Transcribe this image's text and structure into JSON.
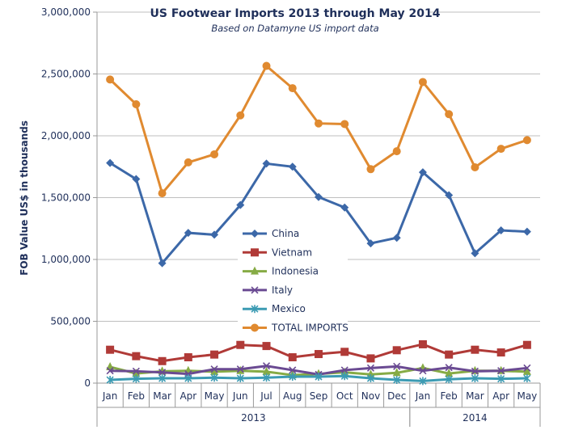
{
  "chart_data": {
    "type": "line",
    "title": "US Footwear Imports 2013 through May 2014",
    "subtitle": "Based on Datamyne US import data",
    "ylabel": "FOB Value US$ in thousands",
    "xlabel": "",
    "ylim": [
      0,
      3000000
    ],
    "yticks": [
      "0",
      "500,000",
      "1,000,000",
      "1,500,000",
      "2,000,000",
      "2,500,000",
      "3,000,000"
    ],
    "categories": [
      "Jan",
      "Feb",
      "Mar",
      "Apr",
      "May",
      "Jun",
      "Jul",
      "Aug",
      "Sep",
      "Oct",
      "Nov",
      "Dec",
      "Jan",
      "Feb",
      "Mar",
      "Apr",
      "May"
    ],
    "year_groups": [
      {
        "label": "2013",
        "count": 12
      },
      {
        "label": "2014",
        "count": 5
      }
    ],
    "grid": "horizontal",
    "legend_position": "center",
    "series": [
      {
        "name": "China",
        "color": "#3c68a8",
        "marker": "diamond",
        "values": [
          1780000,
          1650000,
          970000,
          1215000,
          1200000,
          1440000,
          1775000,
          1750000,
          1505000,
          1420000,
          1130000,
          1175000,
          1705000,
          1520000,
          1050000,
          1235000,
          1225000
        ]
      },
      {
        "name": "Vietnam",
        "color": "#b03a37",
        "marker": "square",
        "values": [
          270000,
          218000,
          178000,
          209000,
          231000,
          309000,
          300000,
          209000,
          235000,
          253000,
          200000,
          266000,
          314000,
          231000,
          270000,
          248000,
          309000
        ]
      },
      {
        "name": "Indonesia",
        "color": "#86ab45",
        "marker": "triangle",
        "values": [
          131000,
          78000,
          96000,
          100000,
          92000,
          100000,
          92000,
          65000,
          74000,
          87000,
          70000,
          83000,
          122000,
          78000,
          100000,
          100000,
          92000
        ]
      },
      {
        "name": "Italy",
        "color": "#6a4a92",
        "marker": "x",
        "values": [
          100000,
          96000,
          87000,
          74000,
          113000,
          113000,
          139000,
          105000,
          70000,
          105000,
          122000,
          135000,
          100000,
          126000,
          96000,
          100000,
          122000
        ]
      },
      {
        "name": "Mexico",
        "color": "#3c9bb3",
        "marker": "star",
        "values": [
          26000,
          35000,
          39000,
          39000,
          44000,
          39000,
          44000,
          52000,
          52000,
          57000,
          39000,
          26000,
          17000,
          31000,
          39000,
          35000,
          39000
        ]
      },
      {
        "name": "TOTAL IMPORTS",
        "color": "#e08a30",
        "marker": "circle",
        "values": [
          2455000,
          2255000,
          1535000,
          1785000,
          1850000,
          2165000,
          2565000,
          2385000,
          2100000,
          2095000,
          1730000,
          1875000,
          2435000,
          2175000,
          1745000,
          1895000,
          1965000
        ]
      }
    ]
  }
}
